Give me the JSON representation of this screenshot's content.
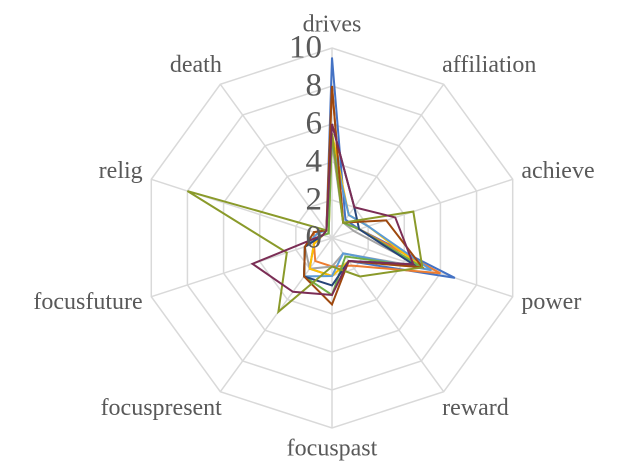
{
  "chart_data": {
    "type": "radar",
    "categories": [
      "drives",
      "affiliation",
      "achieve",
      "power",
      "reward",
      "focuspast",
      "focuspresent",
      "focusfuture",
      "relig",
      "death"
    ],
    "ylim": [
      0,
      10
    ],
    "yticks": [
      0,
      2,
      4,
      6,
      8,
      10
    ],
    "grid": true,
    "series": [
      {
        "color": "#4472c4",
        "values": [
          9.5,
          1.2,
          1.5,
          6.8,
          1.5,
          2,
          2,
          1,
          0.5,
          0.5
        ]
      },
      {
        "color": "#ed7d31",
        "values": [
          8,
          1,
          1.5,
          6,
          1.8,
          1.5,
          1.5,
          1,
          1,
          0.5
        ]
      },
      {
        "color": "#a5a5a5",
        "values": [
          5,
          1,
          1.2,
          5,
          1,
          1.5,
          2,
          1.5,
          0.5,
          0.5
        ]
      },
      {
        "color": "#ffc000",
        "values": [
          5.5,
          1.5,
          2,
          5,
          1.5,
          2,
          2,
          1,
          0.5,
          0.3
        ]
      },
      {
        "color": "#5b9bd5",
        "values": [
          5,
          1.5,
          2,
          5.5,
          1,
          2,
          2.5,
          1.5,
          0.8,
          0.5
        ]
      },
      {
        "color": "#70ad47",
        "values": [
          5.5,
          1,
          1.5,
          5,
          1.2,
          3,
          2.5,
          1.5,
          0.5,
          0.3
        ]
      },
      {
        "color": "#264478",
        "values": [
          6,
          2,
          1.5,
          4.5,
          1.5,
          2.5,
          2.5,
          1.5,
          0.5,
          0.5
        ]
      },
      {
        "color": "#9e480e",
        "values": [
          8,
          1,
          3,
          5,
          1.5,
          3.5,
          2.5,
          1.5,
          1,
          0.5
        ]
      },
      {
        "color": "#8a9a2a",
        "values": [
          5.5,
          1,
          4.5,
          5,
          2.5,
          1.5,
          4.8,
          2.5,
          8,
          0.5
        ]
      },
      {
        "color": "#7b2d55",
        "values": [
          6,
          2,
          3.5,
          4.5,
          1.5,
          3,
          3.5,
          4.4,
          0.5,
          0.5
        ]
      }
    ]
  }
}
